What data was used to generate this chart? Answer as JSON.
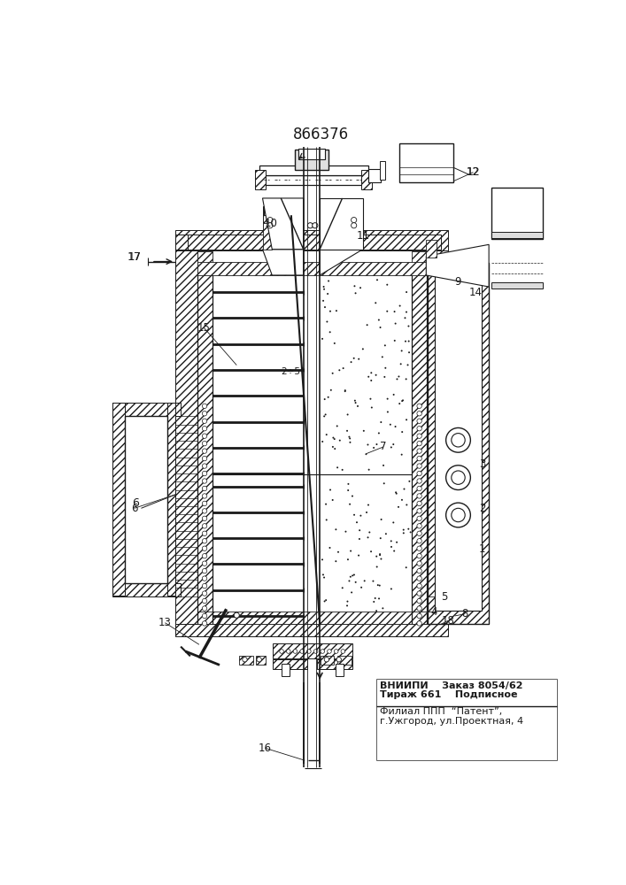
{
  "patent_number": "866376",
  "bg_color": "#ffffff",
  "line_color": "#1a1a1a",
  "footer_line1": "ВНИИПИ    Заказ 8054/62",
  "footer_line2": "Тираж 661    Подписное",
  "footer_line3": "Филиал ППП  “Патент”,",
  "footer_line4": "г.Ужгород, ул.Проектная, 4"
}
